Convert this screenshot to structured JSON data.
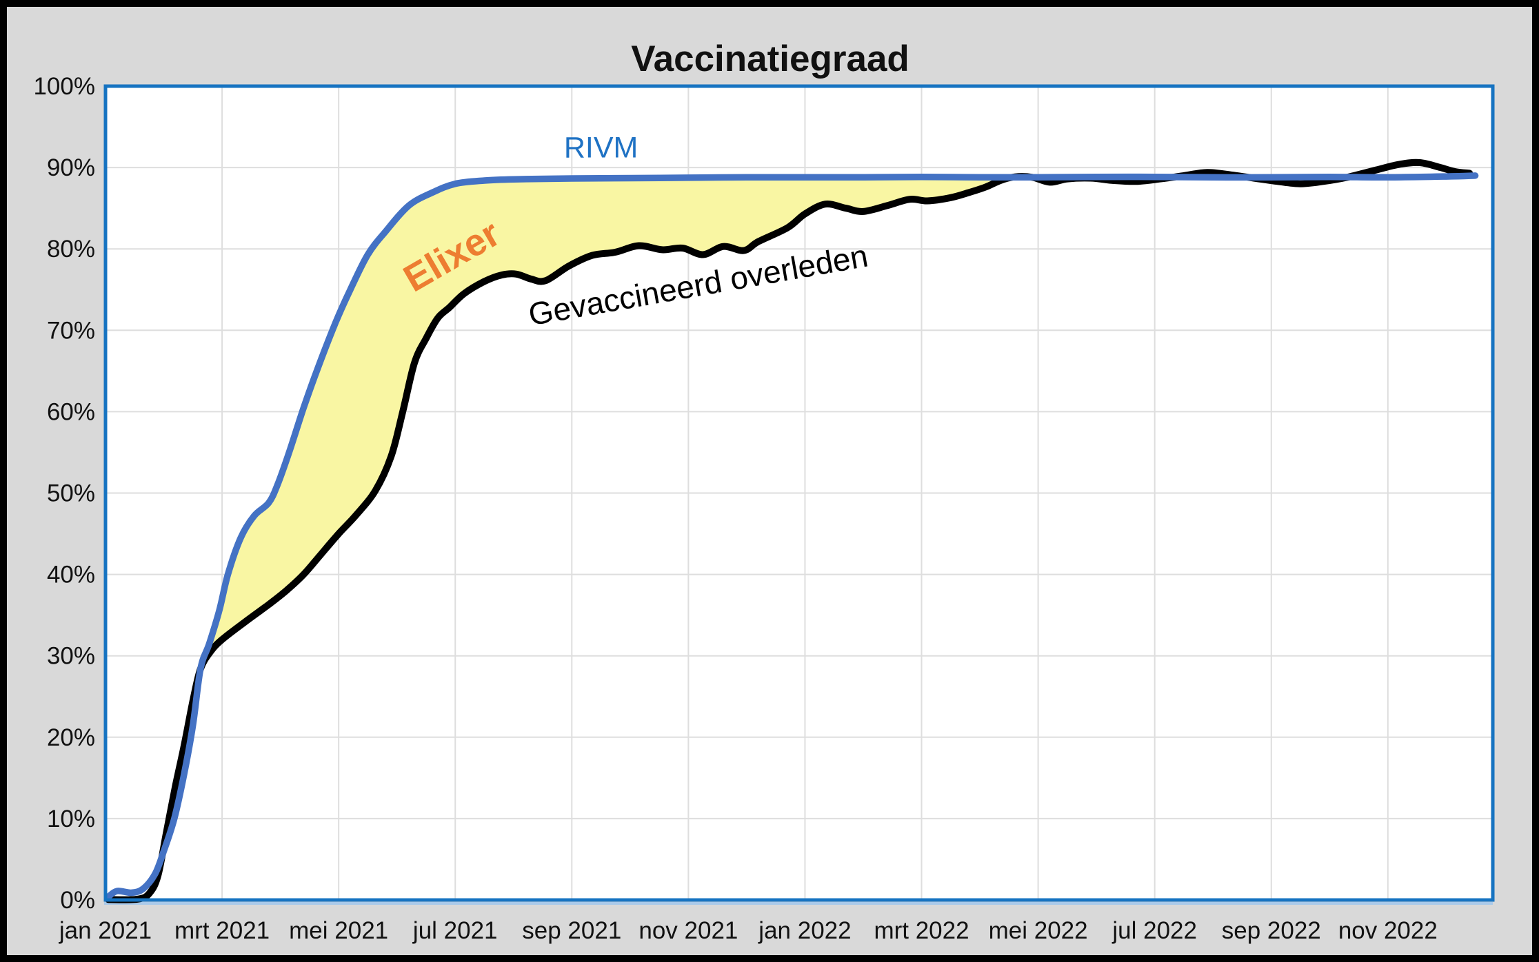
{
  "chart_data": {
    "type": "line",
    "title": "Vaccinatiegraad",
    "x_axis": {
      "tick_labels": [
        "jan 2021",
        "mrt 2021",
        "mei 2021",
        "jul 2021",
        "sep 2021",
        "nov 2021",
        "jan 2022",
        "mrt 2022",
        "mei 2022",
        "jul 2022",
        "sep 2022",
        "nov 2022"
      ],
      "tick_positions_months": [
        0,
        2,
        4,
        6,
        8,
        10,
        12,
        14,
        16,
        18,
        20,
        22
      ],
      "range_months": [
        0,
        23.8
      ],
      "gridline_months": [
        2,
        4,
        6,
        8,
        10,
        12,
        14,
        16,
        18,
        20,
        22
      ]
    },
    "y_axis": {
      "tick_labels": [
        "0%",
        "10%",
        "20%",
        "30%",
        "40%",
        "50%",
        "60%",
        "70%",
        "80%",
        "90%",
        "100%"
      ],
      "tick_values": [
        0,
        10,
        20,
        30,
        40,
        50,
        60,
        70,
        80,
        90,
        100
      ],
      "range": [
        0,
        100
      ],
      "gridline_values": [
        10,
        20,
        30,
        40,
        50,
        60,
        70,
        80,
        90
      ]
    },
    "grid": true,
    "legend": "none",
    "series": [
      {
        "name": "RIVM",
        "color": "#4472C4",
        "line_width": 9.5,
        "points": [
          [
            0.05,
            0.4
          ],
          [
            0.2,
            1.1
          ],
          [
            0.45,
            0.9
          ],
          [
            0.65,
            1.4
          ],
          [
            0.85,
            3.2
          ],
          [
            1.0,
            6.0
          ],
          [
            1.18,
            10
          ],
          [
            1.35,
            15.5
          ],
          [
            1.5,
            21.5
          ],
          [
            1.63,
            28.4
          ],
          [
            1.78,
            31.5
          ],
          [
            1.95,
            35.5
          ],
          [
            2.1,
            40
          ],
          [
            2.32,
            44.5
          ],
          [
            2.55,
            47.2
          ],
          [
            2.8,
            48.8
          ],
          [
            2.95,
            51
          ],
          [
            3.15,
            55
          ],
          [
            3.4,
            60.5
          ],
          [
            3.65,
            65.5
          ],
          [
            3.95,
            71
          ],
          [
            4.2,
            75
          ],
          [
            4.5,
            79.3
          ],
          [
            4.8,
            82.1
          ],
          [
            5.2,
            85.3
          ],
          [
            5.6,
            86.9
          ],
          [
            6.0,
            88.0
          ],
          [
            6.5,
            88.4
          ],
          [
            7.0,
            88.55
          ],
          [
            8.0,
            88.65
          ],
          [
            9.0,
            88.7
          ],
          [
            10.0,
            88.75
          ],
          [
            11.0,
            88.8
          ],
          [
            12.0,
            88.8
          ],
          [
            13.0,
            88.8
          ],
          [
            14.0,
            88.85
          ],
          [
            15.0,
            88.8
          ],
          [
            16.0,
            88.8
          ],
          [
            17.0,
            88.85
          ],
          [
            18.0,
            88.85
          ],
          [
            19.0,
            88.8
          ],
          [
            20.0,
            88.8
          ],
          [
            21.0,
            88.85
          ],
          [
            22.0,
            88.8
          ],
          [
            23.0,
            88.9
          ],
          [
            23.5,
            89.0
          ]
        ]
      },
      {
        "name": "Gevaccineerd overleden",
        "color": "#000000",
        "line_width": 10,
        "points": [
          [
            0.05,
            0.05
          ],
          [
            0.55,
            0.1
          ],
          [
            0.75,
            0.8
          ],
          [
            0.9,
            3.0
          ],
          [
            1.05,
            8.5
          ],
          [
            1.2,
            14
          ],
          [
            1.35,
            19
          ],
          [
            1.5,
            24.5
          ],
          [
            1.63,
            28.4
          ],
          [
            1.8,
            30.5
          ],
          [
            2.0,
            32
          ],
          [
            2.4,
            34.2
          ],
          [
            2.8,
            36.3
          ],
          [
            3.1,
            38
          ],
          [
            3.4,
            40
          ],
          [
            3.7,
            42.5
          ],
          [
            4.0,
            45
          ],
          [
            4.3,
            47.3
          ],
          [
            4.63,
            50.3
          ],
          [
            4.9,
            54.5
          ],
          [
            5.1,
            60
          ],
          [
            5.3,
            66
          ],
          [
            5.5,
            69
          ],
          [
            5.7,
            71.5
          ],
          [
            5.9,
            72.8
          ],
          [
            6.15,
            74.5
          ],
          [
            6.5,
            76
          ],
          [
            6.8,
            76.8
          ],
          [
            7.05,
            76.9
          ],
          [
            7.3,
            76.3
          ],
          [
            7.55,
            76.1
          ],
          [
            7.95,
            77.9
          ],
          [
            8.35,
            79.2
          ],
          [
            8.75,
            79.6
          ],
          [
            9.15,
            80.4
          ],
          [
            9.55,
            79.9
          ],
          [
            9.9,
            80.1
          ],
          [
            10.25,
            79.3
          ],
          [
            10.6,
            80.3
          ],
          [
            10.95,
            79.8
          ],
          [
            11.2,
            80.9
          ],
          [
            11.7,
            82.6
          ],
          [
            12.0,
            84.3
          ],
          [
            12.35,
            85.5
          ],
          [
            12.7,
            85.0
          ],
          [
            13.0,
            84.6
          ],
          [
            13.4,
            85.3
          ],
          [
            13.8,
            86.1
          ],
          [
            14.1,
            85.9
          ],
          [
            14.5,
            86.3
          ],
          [
            14.8,
            86.9
          ],
          [
            15.1,
            87.6
          ],
          [
            15.35,
            88.4
          ],
          [
            15.6,
            88.85
          ],
          [
            15.9,
            88.8
          ],
          [
            16.2,
            88.2
          ],
          [
            16.5,
            88.6
          ],
          [
            16.9,
            88.7
          ],
          [
            17.3,
            88.4
          ],
          [
            17.7,
            88.3
          ],
          [
            18.1,
            88.6
          ],
          [
            18.5,
            89.0
          ],
          [
            18.9,
            89.4
          ],
          [
            19.3,
            89.1
          ],
          [
            19.7,
            88.7
          ],
          [
            20.1,
            88.3
          ],
          [
            20.5,
            88.0
          ],
          [
            20.9,
            88.3
          ],
          [
            21.3,
            88.8
          ],
          [
            21.8,
            89.7
          ],
          [
            22.2,
            90.4
          ],
          [
            22.55,
            90.6
          ],
          [
            22.9,
            90.0
          ],
          [
            23.15,
            89.5
          ],
          [
            23.4,
            89.3
          ]
        ]
      }
    ],
    "fill_between": {
      "label": "Elixer",
      "color": "#F9F6A3",
      "between": [
        "RIVM",
        "Gevaccineerd overleden"
      ],
      "from_month": 1.63,
      "to_month": 15.5
    },
    "annotations": [
      {
        "text": "RIVM",
        "color": "#1F72C4",
        "anchor_month": 8.5,
        "anchor_pct": 92.5,
        "rotation_deg": 0,
        "font_px": 43,
        "bold": false
      },
      {
        "text": "Elixer",
        "color": "#ED7D31",
        "anchor_month": 6.05,
        "anchor_pct": 79.4,
        "rotation_deg": -30,
        "font_px": 55,
        "bold": true
      },
      {
        "text": "Gevaccineerd overleden",
        "color": "#000000",
        "anchor_month": 10.2,
        "anchor_pct": 75.6,
        "rotation_deg": -10,
        "font_px": 46,
        "bold": false
      }
    ],
    "colors": {
      "outer_border": "#000000",
      "background": "#D9D9D9",
      "plot_background": "#FFFFFF",
      "plot_border": "#1673C1",
      "gridline": "#DEDEDE",
      "axis_underline": "#AACAEA"
    }
  }
}
